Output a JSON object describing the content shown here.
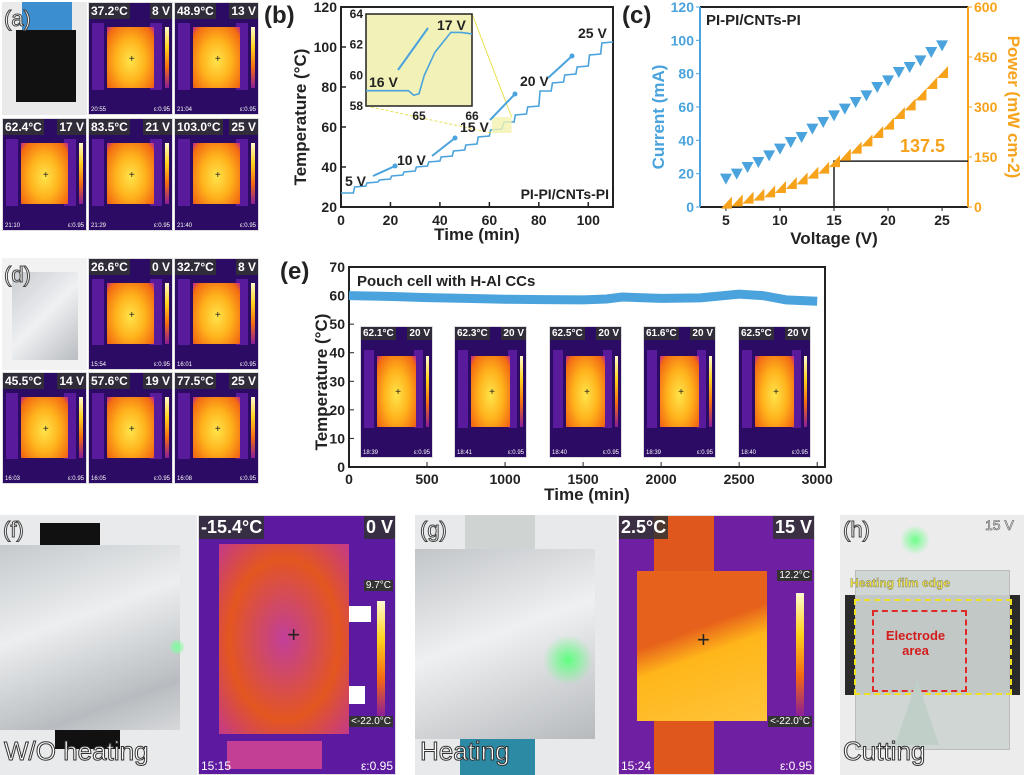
{
  "panel_labels": {
    "a": "(a)",
    "b": "(b)",
    "c": "(c)",
    "d": "(d)",
    "e": "(e)",
    "f": "(f)",
    "g": "(g)",
    "h": "(h)"
  },
  "panel_a_tiles": [
    {
      "temp": "37.2°C",
      "volt": "8 V",
      "time": "20:55",
      "emis": "ε:0.95"
    },
    {
      "temp": "48.9°C",
      "volt": "13 V",
      "time": "21:04",
      "emis": "ε:0.95"
    },
    {
      "temp": "62.4°C",
      "volt": "17 V",
      "time": "21:10",
      "emis": "ε:0.95"
    },
    {
      "temp": "83.5°C",
      "volt": "21 V",
      "time": "21:29",
      "emis": "ε:0.95"
    },
    {
      "temp": "103.0°C",
      "volt": "25 V",
      "time": "21:40",
      "emis": "ε:0.95"
    }
  ],
  "panel_d_tiles": [
    {
      "temp": "26.6°C",
      "volt": "0 V",
      "time": "15:54",
      "emis": "ε:0.95"
    },
    {
      "temp": "32.7°C",
      "volt": "8 V",
      "time": "16:01",
      "emis": "ε:0.95"
    },
    {
      "temp": "45.5°C",
      "volt": "14 V",
      "time": "16:03",
      "emis": "ε:0.95"
    },
    {
      "temp": "57.6°C",
      "volt": "19 V",
      "time": "16:05",
      "emis": "ε:0.95"
    },
    {
      "temp": "77.5°C",
      "volt": "25 V",
      "time": "16:08",
      "emis": "ε:0.95"
    }
  ],
  "panel_e_tiles": [
    {
      "temp": "62.1°C",
      "volt": "20 V",
      "time": "18:39",
      "emis": "ε:0.95"
    },
    {
      "temp": "62.3°C",
      "volt": "20 V",
      "time": "18:41",
      "emis": "ε:0.95"
    },
    {
      "temp": "62.5°C",
      "volt": "20 V",
      "time": "18:40",
      "emis": "ε:0.95"
    },
    {
      "temp": "61.6°C",
      "volt": "20 V",
      "time": "18:39",
      "emis": "ε:0.95"
    },
    {
      "temp": "62.5°C",
      "volt": "20 V",
      "time": "18:40",
      "emis": "ε:0.95"
    }
  ],
  "panel_f": {
    "caption": "W/O heating",
    "temp": "-15.4°C",
    "volt": "0 V",
    "max": "9.7°C",
    "min": "<-22.0°C",
    "time": "15:15",
    "emis": "ε:0.95"
  },
  "panel_g": {
    "caption": "Heating",
    "temp": "2.5°C",
    "volt": "15 V",
    "max": "12.2°C",
    "min": "<-22.0°C",
    "time": "15:24",
    "emis": "ε:0.95"
  },
  "panel_h": {
    "caption": "Cutting",
    "volt": "15 V",
    "edge_label": "Heating film edge",
    "electrode_label": "Electrode area"
  },
  "colors": {
    "blue": "#4aa3dc",
    "orange": "#f7a21b",
    "thermal_bg": "#2b0b63"
  },
  "chart_data": [
    {
      "id": "b",
      "type": "line",
      "xlabel": "Time (min)",
      "ylabel": "Temperature (°C)",
      "xlim": [
        0,
        110
      ],
      "ylim": [
        20,
        120
      ],
      "xticks": [
        0,
        20,
        40,
        60,
        80,
        100
      ],
      "yticks": [
        20,
        40,
        60,
        80,
        100,
        120
      ],
      "annotation": "PI-PI/CNTs-PI",
      "voltage_labels": [
        "5 V",
        "10 V",
        "15 V",
        "20 V",
        "25 V"
      ],
      "x": [
        0,
        5,
        5.5,
        10,
        10.5,
        15,
        15.5,
        20,
        20.5,
        25,
        25.5,
        30,
        30.5,
        35,
        35.5,
        40,
        40.5,
        45,
        45.5,
        50,
        50.5,
        55,
        55.5,
        60,
        60.5,
        65,
        66,
        70,
        70.5,
        75,
        75.5,
        80,
        80.5,
        85,
        85.5,
        90,
        90.5,
        95,
        95.5,
        100,
        100.5,
        105,
        105.5,
        110
      ],
      "y": [
        27,
        27,
        30,
        30.5,
        32,
        32.5,
        33.5,
        34,
        35.5,
        36,
        37.5,
        38,
        40,
        40.5,
        42.5,
        43,
        45,
        45.5,
        48,
        48.5,
        51,
        51.5,
        55,
        55.5,
        58.5,
        59,
        62.5,
        62.5,
        66,
        66.5,
        70,
        70.5,
        78,
        78,
        82,
        82.5,
        86,
        86.5,
        90,
        90.5,
        96,
        96.5,
        102,
        102.5
      ],
      "inset": {
        "xlim": [
          64,
          66
        ],
        "ylim": [
          58,
          64
        ],
        "xticks": [
          65,
          66
        ],
        "yticks": [
          58,
          60,
          62,
          64
        ],
        "labels": [
          "16 V",
          "17 V"
        ],
        "x": [
          64,
          64.5,
          64.8,
          64.9,
          65,
          65.1,
          65.3,
          65.6,
          65.8,
          66
        ],
        "y": [
          59,
          59,
          59,
          58.7,
          58.8,
          60,
          61.5,
          62.8,
          62.8,
          62.7
        ]
      }
    },
    {
      "id": "c",
      "type": "scatter",
      "xlabel": "Voltage (V)",
      "ylabel": "Current (mA)",
      "y2label": "Power (mW cm-2)",
      "xlim": [
        2.6,
        27.4
      ],
      "ylim": [
        0,
        120
      ],
      "y2lim": [
        0,
        600
      ],
      "xticks": [
        5,
        10,
        15,
        20,
        25
      ],
      "yticks": [
        0,
        20,
        40,
        60,
        80,
        100,
        120
      ],
      "y2ticks": [
        0,
        150,
        300,
        450,
        600
      ],
      "annotation": "PI-PI/CNTs-PI",
      "highlight": {
        "x": 15,
        "y2": 137.5,
        "label": "137.5"
      },
      "x": [
        5,
        6,
        7,
        8,
        9,
        10,
        11,
        12,
        13,
        14,
        15,
        16,
        17,
        18,
        19,
        20,
        21,
        22,
        23,
        24,
        25
      ],
      "series": [
        {
          "axis": "left",
          "color": "#4aa3dc",
          "values": [
            17,
            20,
            24,
            27,
            31,
            35,
            39,
            42,
            47,
            51,
            55,
            59,
            63,
            67,
            72,
            76,
            81,
            84,
            88,
            93,
            97
          ]
        },
        {
          "axis": "right",
          "color": "#f7a21b",
          "values": [
            13,
            20,
            28,
            37,
            47,
            60,
            72,
            86,
            103,
            118,
            137.5,
            157,
            178,
            200,
            225,
            250,
            282,
            308,
            338,
            372,
            405
          ]
        }
      ]
    },
    {
      "id": "e",
      "type": "line",
      "xlabel": "Time (min)",
      "ylabel": "Temperature (°C)",
      "xlim": [
        0,
        3050
      ],
      "ylim": [
        0,
        70
      ],
      "xticks": [
        0,
        500,
        1000,
        1500,
        2000,
        2500,
        3000
      ],
      "yticks": [
        0,
        10,
        20,
        30,
        40,
        50,
        60,
        70
      ],
      "annotation": "Pouch cell with H-Al CCs",
      "x": [
        0,
        250,
        500,
        750,
        1000,
        1250,
        1500,
        1650,
        1750,
        2000,
        2250,
        2500,
        2650,
        2800,
        3000
      ],
      "y": [
        60,
        59.7,
        59.3,
        59,
        58.7,
        58.6,
        58.5,
        58.8,
        59.5,
        59,
        59.2,
        60.5,
        60,
        58.5,
        58
      ]
    }
  ]
}
